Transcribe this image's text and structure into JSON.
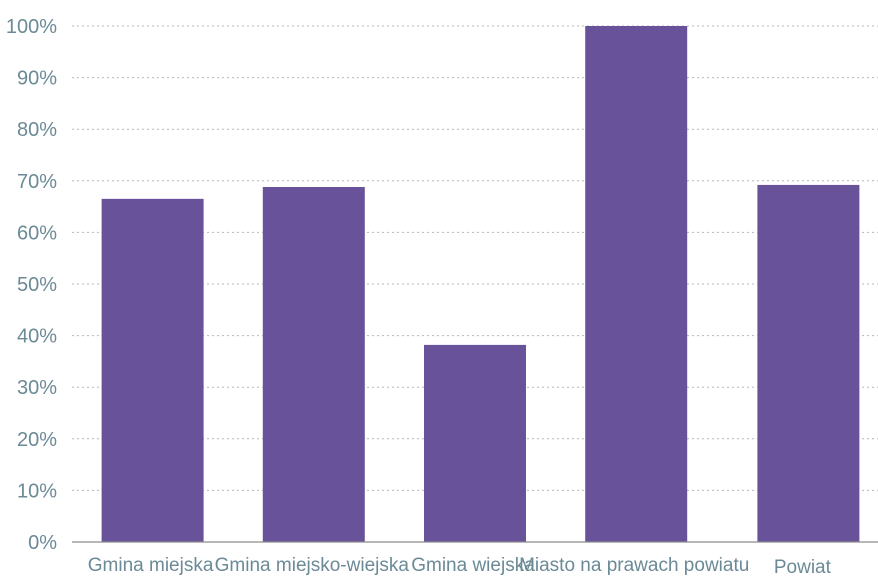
{
  "chart_data": {
    "type": "bar",
    "title": "",
    "xlabel": "",
    "ylabel": "",
    "categories": [
      "Gmina miejska",
      "Gmina miejsko-wiejska",
      "Gmina wiejska",
      "Miasto na prawach powiatu",
      "Powiat"
    ],
    "series": [
      {
        "values": [
          66.5,
          68.8,
          38.2,
          100,
          69.2
        ]
      }
    ],
    "ylim": [
      0,
      100
    ],
    "yticks": [
      "0%",
      "10%",
      "20%",
      "30%",
      "40%",
      "50%",
      "60%",
      "70%",
      "80%",
      "90%",
      "100%"
    ],
    "grid": true,
    "legend": "none"
  },
  "colors": {
    "bar": "#68539b",
    "tick_text": "#6b8a96",
    "grid": "#b7b7b7",
    "axis": "#8c8c8c"
  }
}
